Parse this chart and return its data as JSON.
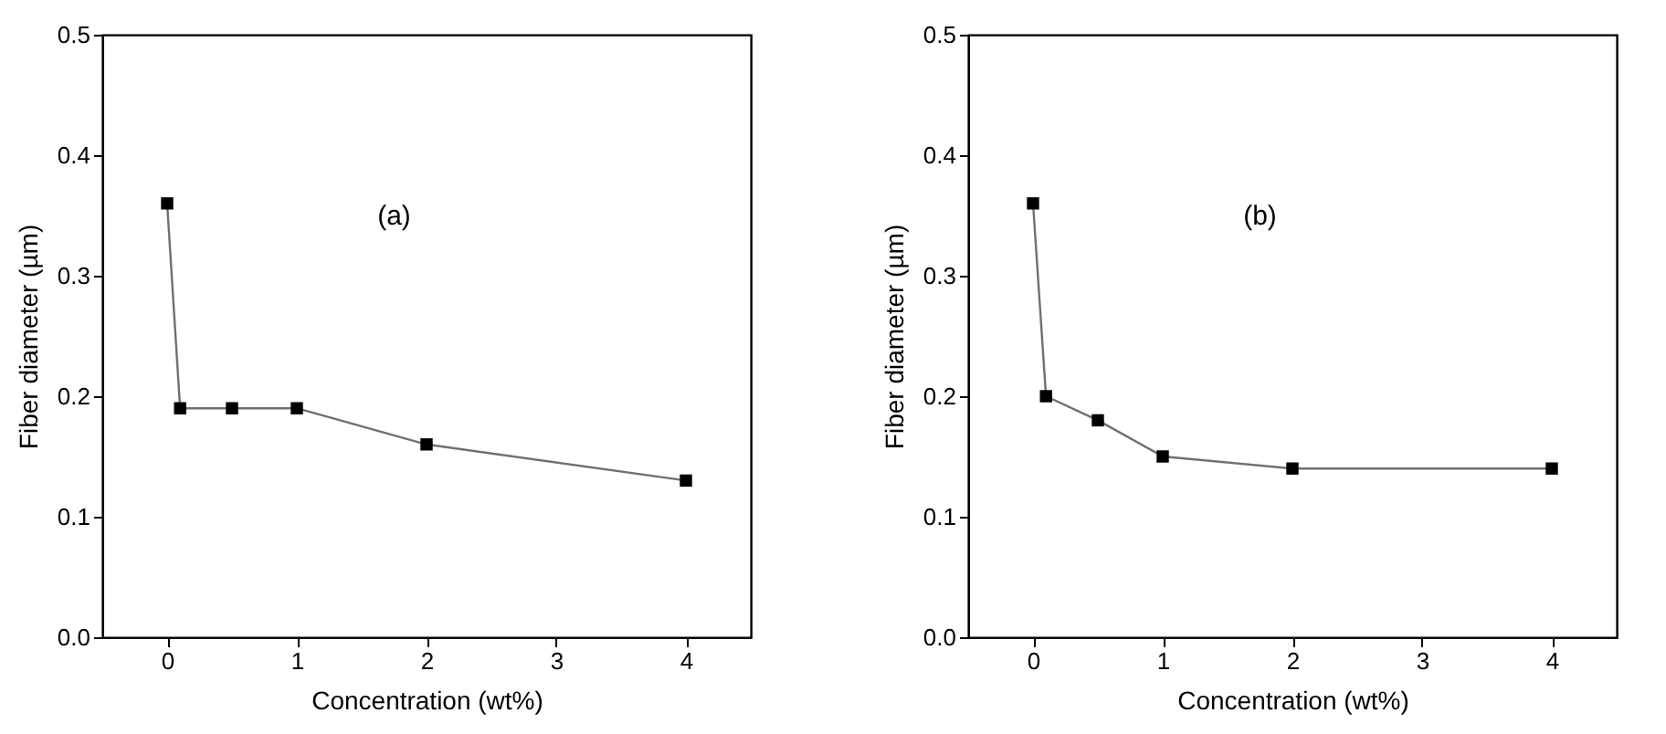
{
  "chart_data": [
    {
      "type": "line",
      "x": [
        0,
        0.1,
        0.5,
        1,
        2,
        4
      ],
      "xlabel": "Concentration (wt%)",
      "ylabel": "Fiber diameter (µm)",
      "annotations": [
        "(a)"
      ],
      "marker": "square",
      "line_style": "solid",
      "grid": false,
      "legend": false,
      "series": [
        {
          "color": "#000000",
          "values": [
            0.36,
            0.19,
            0.19,
            0.19,
            0.16,
            0.13
          ]
        }
      ],
      "xlim": [
        -0.5,
        4.5
      ],
      "xticks": [
        0,
        1,
        2,
        3,
        4
      ],
      "ylim": [
        0,
        0.5
      ],
      "yticks": [
        {
          "value": 0,
          "label": "0.0"
        },
        0.1,
        0.2,
        0.3,
        0.4,
        0.5
      ]
    },
    {
      "type": "line",
      "x": [
        0,
        0.1,
        0.5,
        1,
        2,
        4
      ],
      "xlabel": "Concentration (wt%)",
      "ylabel": "Fiber diameter (µm)",
      "annotations": [
        "(b)"
      ],
      "marker": "square",
      "line_style": "solid",
      "grid": false,
      "legend": false,
      "series": [
        {
          "color": "#000000",
          "values": [
            0.36,
            0.2,
            0.18,
            0.15,
            0.14,
            0.14
          ]
        }
      ],
      "xlim": [
        -0.5,
        4.5
      ],
      "xticks": [
        0,
        1,
        2,
        3,
        4
      ],
      "ylim": [
        0,
        0.5
      ],
      "yticks": [
        {
          "value": 0,
          "label": "0.0"
        },
        0.1,
        0.2,
        0.3,
        0.4,
        0.5
      ]
    }
  ]
}
